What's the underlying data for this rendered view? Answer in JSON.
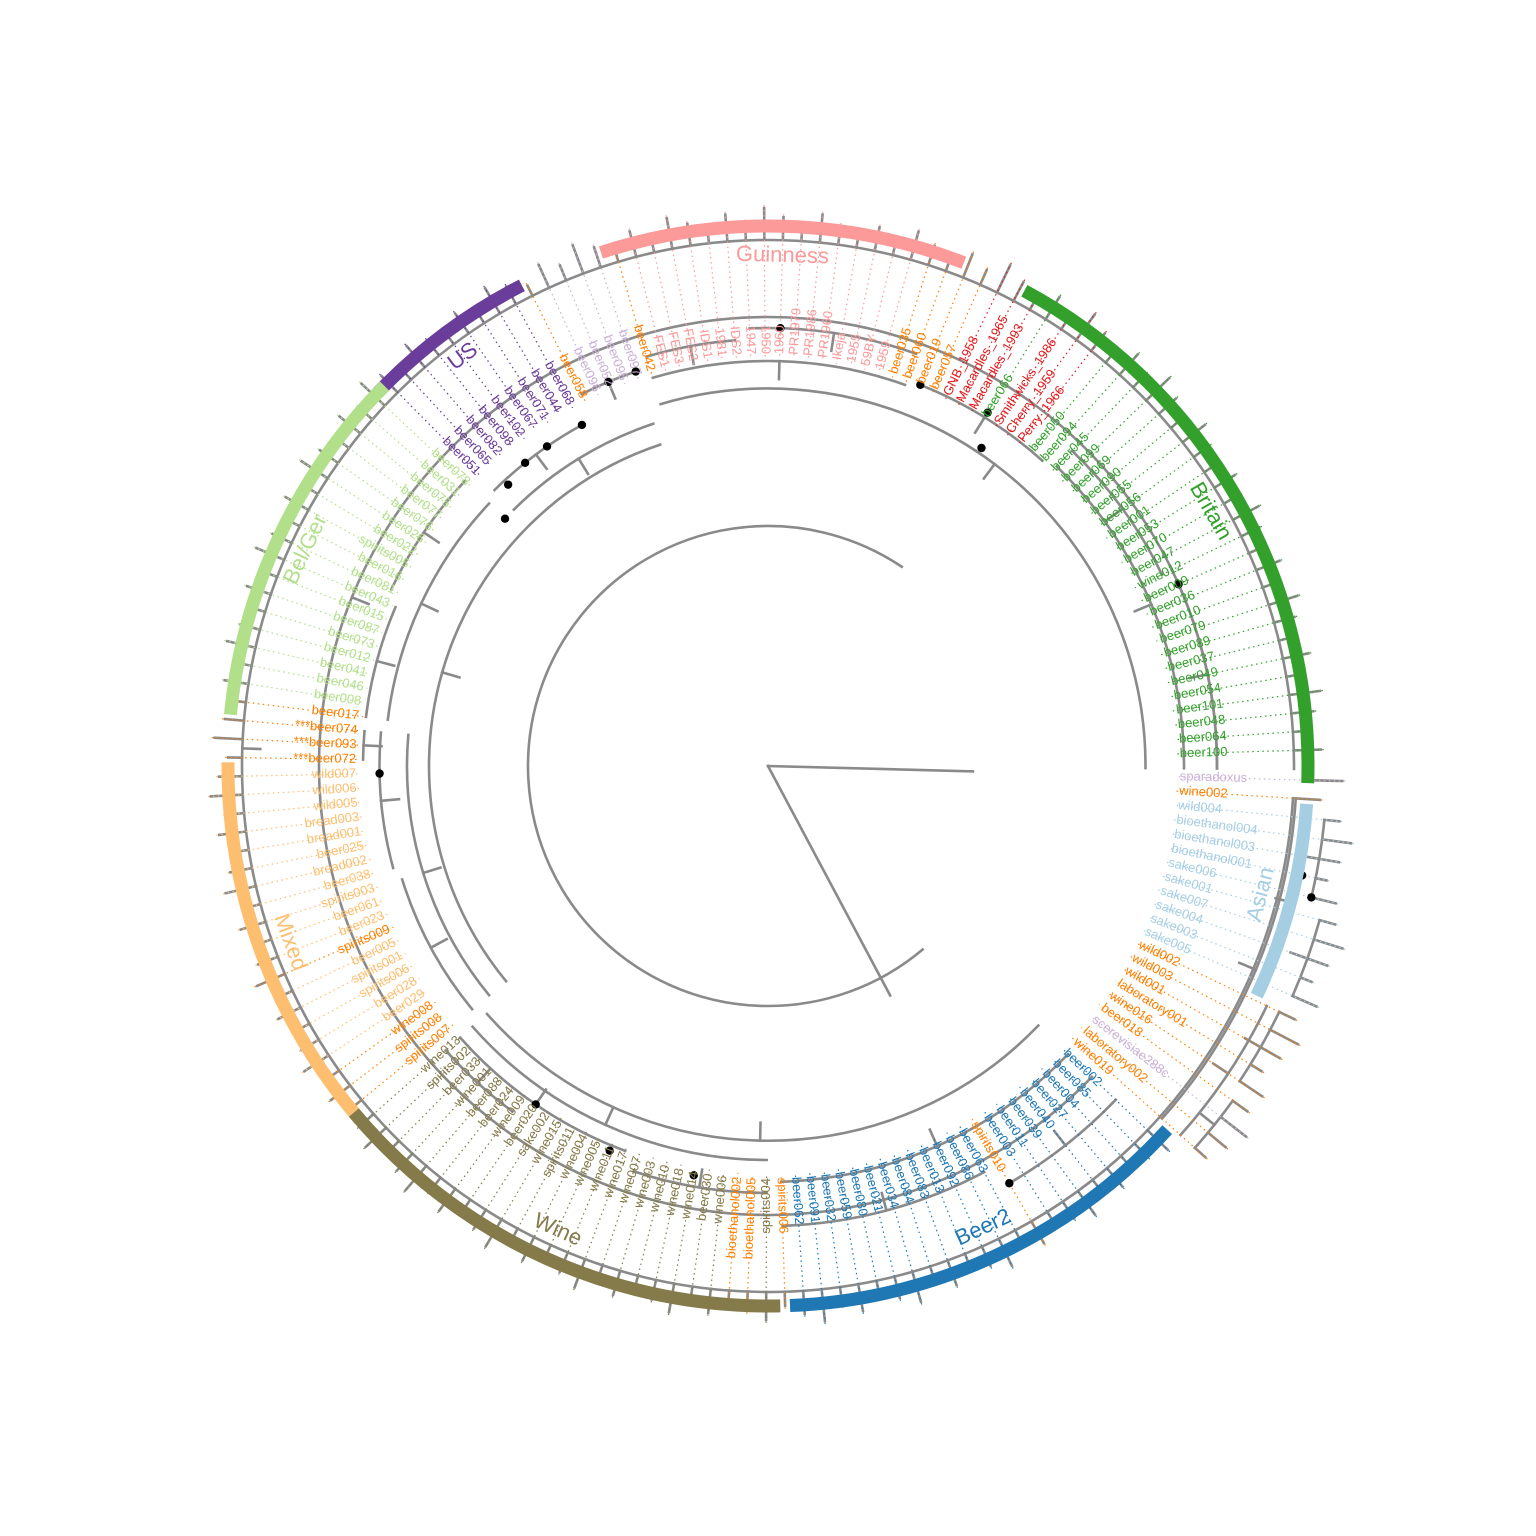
{
  "colors": {
    "Beer2": "#1f78b4",
    "Asian": "#a6cee3",
    "Britain": "#33a02c",
    "Guinness": "#fb9a99",
    "US": "#6a3d9a",
    "Bel/Ger": "#b2df8a",
    "Mixed": "#fdbf6f",
    "Wine": "#857b4a",
    "orange": "#ff7f00",
    "red": "#e31a1c",
    "lightpurple": "#cab2d6",
    "branch": "#8a8a8a"
  },
  "clades": [
    {
      "name": "Beer2",
      "color_key": "Beer2"
    },
    {
      "name": "Asian",
      "color_key": "Asian"
    },
    {
      "name": "Britain",
      "color_key": "Britain"
    },
    {
      "name": "Guinness",
      "color_key": "Guinness"
    },
    {
      "name": "US",
      "color_key": "US"
    },
    {
      "name": "Bel/Ger",
      "color_key": "Bel/Ger"
    },
    {
      "name": "Mixed",
      "color_key": "Mixed"
    },
    {
      "name": "Wine",
      "color_key": "Wine"
    }
  ],
  "leaves": [
    {
      "label": "sparadoxus",
      "color_key": "lightpurple"
    },
    {
      "label": "wine002",
      "color_key": "orange"
    },
    {
      "label": "wild004",
      "color_key": "Asian"
    },
    {
      "label": "bioethanol004",
      "color_key": "Asian"
    },
    {
      "label": "bioethanol003",
      "color_key": "Asian"
    },
    {
      "label": "bioethanol001",
      "color_key": "Asian"
    },
    {
      "label": "sake006",
      "color_key": "Asian"
    },
    {
      "label": "sake001",
      "color_key": "Asian"
    },
    {
      "label": "sake007",
      "color_key": "Asian"
    },
    {
      "label": "sake004",
      "color_key": "Asian"
    },
    {
      "label": "sake003",
      "color_key": "Asian"
    },
    {
      "label": "sake005",
      "color_key": "Asian"
    },
    {
      "label": "wild002",
      "color_key": "orange"
    },
    {
      "label": "wild003",
      "color_key": "orange"
    },
    {
      "label": "wild001",
      "color_key": "orange"
    },
    {
      "label": "laboratory001",
      "color_key": "orange"
    },
    {
      "label": "wine016",
      "color_key": "orange"
    },
    {
      "label": "beer018",
      "color_key": "orange"
    },
    {
      "label": "scerevisiae288c",
      "color_key": "lightpurple"
    },
    {
      "label": "laboratory002",
      "color_key": "orange"
    },
    {
      "label": "wine019",
      "color_key": "orange"
    },
    {
      "label": "beer002",
      "color_key": "Beer2"
    },
    {
      "label": "beer085",
      "color_key": "Beer2"
    },
    {
      "label": "beer004",
      "color_key": "Beer2"
    },
    {
      "label": "beer027",
      "color_key": "Beer2"
    },
    {
      "label": "beer040",
      "color_key": "Beer2"
    },
    {
      "label": "beer039",
      "color_key": "Beer2"
    },
    {
      "label": "beer011",
      "color_key": "Beer2"
    },
    {
      "label": "beer003",
      "color_key": "Beer2"
    },
    {
      "label": "spirits010",
      "color_key": "orange"
    },
    {
      "label": "beer063",
      "color_key": "Beer2"
    },
    {
      "label": "beer086",
      "color_key": "Beer2"
    },
    {
      "label": "beer092",
      "color_key": "Beer2"
    },
    {
      "label": "beer013",
      "color_key": "Beer2"
    },
    {
      "label": "beer083",
      "color_key": "Beer2"
    },
    {
      "label": "beer084",
      "color_key": "Beer2"
    },
    {
      "label": "beer034",
      "color_key": "Beer2"
    },
    {
      "label": "beer021",
      "color_key": "Beer2"
    },
    {
      "label": "beer080",
      "color_key": "Beer2"
    },
    {
      "label": "beer059",
      "color_key": "Beer2"
    },
    {
      "label": "beer032",
      "color_key": "Beer2"
    },
    {
      "label": "beer091",
      "color_key": "Beer2"
    },
    {
      "label": "beer062",
      "color_key": "Beer2"
    },
    {
      "label": "spirits006",
      "color_key": "orange"
    },
    {
      "label": "spirits004",
      "color_key": "Wine"
    },
    {
      "label": "bioethanol005",
      "color_key": "orange"
    },
    {
      "label": "bioethanol002",
      "color_key": "orange"
    },
    {
      "label": "wine006",
      "color_key": "Wine"
    },
    {
      "label": "beer030",
      "color_key": "Wine"
    },
    {
      "label": "wine014",
      "color_key": "Wine"
    },
    {
      "label": "wine018",
      "color_key": "Wine"
    },
    {
      "label": "wine010",
      "color_key": "Wine"
    },
    {
      "label": "wine003",
      "color_key": "Wine"
    },
    {
      "label": "wine007",
      "color_key": "Wine"
    },
    {
      "label": "wine017",
      "color_key": "Wine"
    },
    {
      "label": "wine011",
      "color_key": "Wine"
    },
    {
      "label": "wine005",
      "color_key": "Wine"
    },
    {
      "label": "wine004",
      "color_key": "Wine"
    },
    {
      "label": "spirits011",
      "color_key": "Wine"
    },
    {
      "label": "wine015",
      "color_key": "Wine"
    },
    {
      "label": "sake002",
      "color_key": "Wine"
    },
    {
      "label": "beer020",
      "color_key": "Wine"
    },
    {
      "label": "wine009",
      "color_key": "Wine"
    },
    {
      "label": "beer024",
      "color_key": "Wine"
    },
    {
      "label": "beer088",
      "color_key": "Wine"
    },
    {
      "label": "wine001",
      "color_key": "Wine"
    },
    {
      "label": "beer033",
      "color_key": "Wine"
    },
    {
      "label": "spirits002",
      "color_key": "Wine"
    },
    {
      "label": "wine013",
      "color_key": "Wine"
    },
    {
      "label": "spirits007",
      "color_key": "orange"
    },
    {
      "label": "spirits008",
      "color_key": "orange"
    },
    {
      "label": "wine008",
      "color_key": "orange"
    },
    {
      "label": "beer029",
      "color_key": "Mixed"
    },
    {
      "label": "beer028",
      "color_key": "Mixed"
    },
    {
      "label": "spirits006",
      "color_key": "Mixed"
    },
    {
      "label": "spirits001",
      "color_key": "Mixed"
    },
    {
      "label": "beer005",
      "color_key": "Mixed"
    },
    {
      "label": "spirits009",
      "color_key": "orange"
    },
    {
      "label": "beer023",
      "color_key": "Mixed"
    },
    {
      "label": "beer061",
      "color_key": "Mixed"
    },
    {
      "label": "spirits003",
      "color_key": "Mixed"
    },
    {
      "label": "beer038",
      "color_key": "Mixed"
    },
    {
      "label": "bread002",
      "color_key": "Mixed"
    },
    {
      "label": "beer025",
      "color_key": "Mixed"
    },
    {
      "label": "bread001",
      "color_key": "Mixed"
    },
    {
      "label": "bread003",
      "color_key": "Mixed"
    },
    {
      "label": "wild005",
      "color_key": "Mixed"
    },
    {
      "label": "wild006",
      "color_key": "Mixed"
    },
    {
      "label": "wild007",
      "color_key": "Mixed"
    },
    {
      "label": "***beer072",
      "color_key": "orange"
    },
    {
      "label": "***beer093",
      "color_key": "orange"
    },
    {
      "label": "***beer074",
      "color_key": "orange"
    },
    {
      "label": "beer017",
      "color_key": "orange"
    },
    {
      "label": "beer008",
      "color_key": "Bel/Ger"
    },
    {
      "label": "beer046",
      "color_key": "Bel/Ger"
    },
    {
      "label": "beer041",
      "color_key": "Bel/Ger"
    },
    {
      "label": "beer012",
      "color_key": "Bel/Ger"
    },
    {
      "label": "beer073",
      "color_key": "Bel/Ger"
    },
    {
      "label": "beer087",
      "color_key": "Bel/Ger"
    },
    {
      "label": "beer015",
      "color_key": "Bel/Ger"
    },
    {
      "label": "beer043",
      "color_key": "Bel/Ger"
    },
    {
      "label": "beer081",
      "color_key": "Bel/Ger"
    },
    {
      "label": "beer016",
      "color_key": "Bel/Ger"
    },
    {
      "label": "spirits005",
      "color_key": "Bel/Ger"
    },
    {
      "label": "beer022",
      "color_key": "Bel/Ger"
    },
    {
      "label": "beer026",
      "color_key": "Bel/Ger"
    },
    {
      "label": "beer076",
      "color_key": "Bel/Ger"
    },
    {
      "label": "beer077",
      "color_key": "Bel/Ger"
    },
    {
      "label": "beer075",
      "color_key": "Bel/Ger"
    },
    {
      "label": "beer031",
      "color_key": "Bel/Ger"
    },
    {
      "label": "beer078",
      "color_key": "Bel/Ger"
    },
    {
      "label": "beer051",
      "color_key": "US"
    },
    {
      "label": "beer065",
      "color_key": "US"
    },
    {
      "label": "beer082",
      "color_key": "US"
    },
    {
      "label": "beer098",
      "color_key": "US"
    },
    {
      "label": "beer102",
      "color_key": "US"
    },
    {
      "label": "beer067",
      "color_key": "US"
    },
    {
      "label": "beer071",
      "color_key": "US"
    },
    {
      "label": "beer044",
      "color_key": "US"
    },
    {
      "label": "beer068",
      "color_key": "US"
    },
    {
      "label": "beer058",
      "color_key": "orange"
    },
    {
      "label": "beer096",
      "color_key": "lightpurple"
    },
    {
      "label": "beer052",
      "color_key": "lightpurple"
    },
    {
      "label": "beer095",
      "color_key": "lightpurple"
    },
    {
      "label": "beer097",
      "color_key": "lightpurple"
    },
    {
      "label": "beer042",
      "color_key": "orange"
    },
    {
      "label": "FES1",
      "color_key": "Guinness"
    },
    {
      "label": "FES3",
      "color_key": "Guinness"
    },
    {
      "label": "FES2",
      "color_key": "Guinness"
    },
    {
      "label": "IDS1",
      "color_key": "Guinness"
    },
    {
      "label": "1981",
      "color_key": "Guinness"
    },
    {
      "label": "IDS2",
      "color_key": "Guinness"
    },
    {
      "label": "1947",
      "color_key": "Guinness"
    },
    {
      "label": "1950",
      "color_key": "Guinness"
    },
    {
      "label": "1960",
      "color_key": "Guinness"
    },
    {
      "label": "PR1979",
      "color_key": "Guinness"
    },
    {
      "label": "PR1986",
      "color_key": "Guinness"
    },
    {
      "label": "PR1960",
      "color_key": "Guinness"
    },
    {
      "label": "Ikeja",
      "color_key": "Guinness"
    },
    {
      "label": "1955",
      "color_key": "Guinness"
    },
    {
      "label": "59BY",
      "color_key": "Guinness"
    },
    {
      "label": "1959",
      "color_key": "Guinness"
    },
    {
      "label": "beer035",
      "color_key": "orange"
    },
    {
      "label": "beer060",
      "color_key": "orange"
    },
    {
      "label": "beer019",
      "color_key": "orange"
    },
    {
      "label": "beer057",
      "color_key": "orange"
    },
    {
      "label": "GNB_1958",
      "color_key": "red"
    },
    {
      "label": "Macardles_1965",
      "color_key": "red"
    },
    {
      "label": "Macardles_1993",
      "color_key": "red"
    },
    {
      "label": "beer066",
      "color_key": "Britain"
    },
    {
      "label": "Smithwicks_1986",
      "color_key": "red"
    },
    {
      "label": "Cherry_1959",
      "color_key": "red"
    },
    {
      "label": "Perry_1966",
      "color_key": "red"
    },
    {
      "label": "beer050",
      "color_key": "Britain"
    },
    {
      "label": "beer094",
      "color_key": "Britain"
    },
    {
      "label": "beer045",
      "color_key": "Britain"
    },
    {
      "label": "beer099",
      "color_key": "Britain"
    },
    {
      "label": "beer069",
      "color_key": "Britain"
    },
    {
      "label": "beer090",
      "color_key": "Britain"
    },
    {
      "label": "beer055",
      "color_key": "Britain"
    },
    {
      "label": "beer056",
      "color_key": "Britain"
    },
    {
      "label": "beer001",
      "color_key": "Britain"
    },
    {
      "label": "beer053",
      "color_key": "Britain"
    },
    {
      "label": "beer070",
      "color_key": "Britain"
    },
    {
      "label": "beer047",
      "color_key": "Britain"
    },
    {
      "label": "wine012",
      "color_key": "Britain"
    },
    {
      "label": "beer009",
      "color_key": "Britain"
    },
    {
      "label": "beer036",
      "color_key": "Britain"
    },
    {
      "label": "beer010",
      "color_key": "Britain"
    },
    {
      "label": "beer079",
      "color_key": "Britain"
    },
    {
      "label": "beer089",
      "color_key": "Britain"
    },
    {
      "label": "beer037",
      "color_key": "Britain"
    },
    {
      "label": "beer049",
      "color_key": "Britain"
    },
    {
      "label": "beer054",
      "color_key": "Britain"
    },
    {
      "label": "beer101",
      "color_key": "Britain"
    },
    {
      "label": "beer048",
      "color_key": "Britain"
    },
    {
      "label": "beer064",
      "color_key": "Britain"
    },
    {
      "label": "beer100",
      "color_key": "Britain"
    }
  ]
}
